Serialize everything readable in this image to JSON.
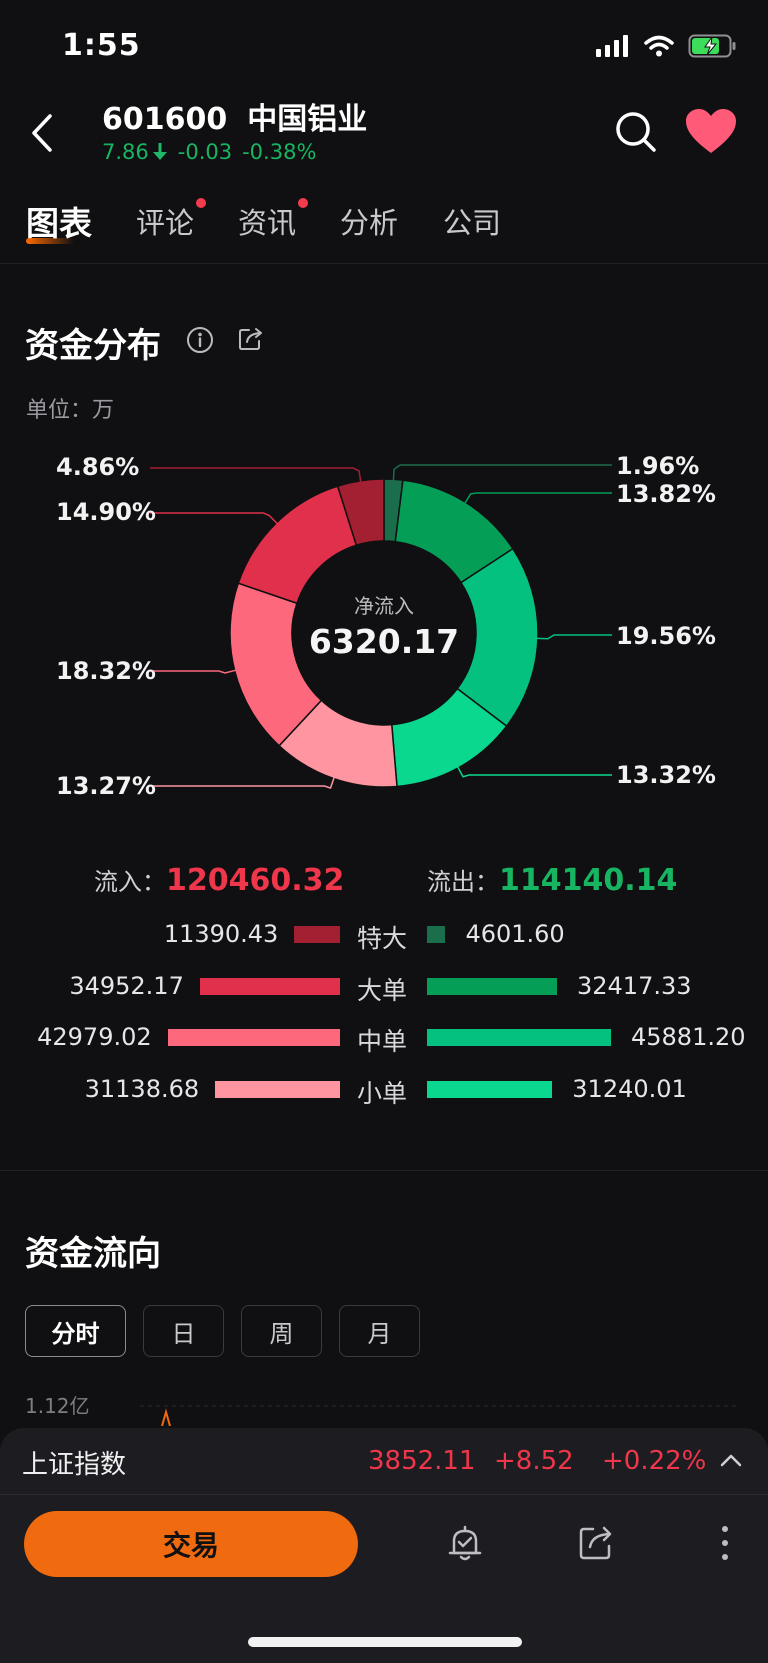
{
  "status_bar": {
    "time": "1:55"
  },
  "header": {
    "code": "601600",
    "name": "中国铝业",
    "price": "7.86",
    "change": "-0.03",
    "change_pct": "-0.38%"
  },
  "tabs": [
    {
      "label": "图表",
      "active": true,
      "badge": false
    },
    {
      "label": "评论",
      "active": false,
      "badge": true
    },
    {
      "label": "资讯",
      "active": false,
      "badge": true
    },
    {
      "label": "分析",
      "active": false,
      "badge": false
    },
    {
      "label": "公司",
      "active": false,
      "badge": false
    }
  ],
  "distribution": {
    "title": "资金分布",
    "unit": "单位：万",
    "center_label": "净流入",
    "center_value": "6320.17",
    "inflow_label": "流入：",
    "inflow_value": "120460.32",
    "outflow_label": "流出：",
    "outflow_value": "114140.14",
    "rows": [
      {
        "category": "特大",
        "in": "11390.43",
        "out": "4601.60"
      },
      {
        "category": "大单",
        "in": "34952.17",
        "out": "32417.33"
      },
      {
        "category": "中单",
        "in": "42979.02",
        "out": "45881.20"
      },
      {
        "category": "小单",
        "in": "31138.68",
        "out": "31240.01"
      }
    ]
  },
  "chart_data": {
    "type": "pie",
    "donut": true,
    "slices": [
      {
        "group": "out",
        "category": "特大",
        "value": 1.96,
        "label": "1.96%",
        "color": "#1a6e4c"
      },
      {
        "group": "out",
        "category": "大单",
        "value": 13.82,
        "label": "13.82%",
        "color": "#049e57"
      },
      {
        "group": "out",
        "category": "中单",
        "value": 19.56,
        "label": "19.56%",
        "color": "#05c180"
      },
      {
        "group": "out",
        "category": "小单",
        "value": 13.32,
        "label": "13.32%",
        "color": "#0ad88e"
      },
      {
        "group": "in",
        "category": "小单",
        "value": 13.27,
        "label": "13.27%",
        "color": "#fe95a1"
      },
      {
        "group": "in",
        "category": "中单",
        "value": 18.32,
        "label": "18.32%",
        "color": "#fd687c"
      },
      {
        "group": "in",
        "category": "大单",
        "value": 14.9,
        "label": "14.90%",
        "color": "#e0304b"
      },
      {
        "group": "in",
        "category": "特大",
        "value": 4.86,
        "label": "4.86%",
        "color": "#a31f32"
      }
    ]
  },
  "flow_direction": {
    "title": "资金流向",
    "periods": [
      "分时",
      "日",
      "周",
      "月"
    ],
    "active_period": "分时",
    "y_top_label": "1.12亿"
  },
  "index_bar": {
    "name": "上证指数",
    "value": "3852.11",
    "change": "+8.52",
    "change_pct": "+0.22%"
  },
  "bottom_bar": {
    "trade_label": "交易"
  },
  "colors": {
    "inflow": "#f0364b",
    "outflow": "#17b561",
    "accent": "#f06a0f",
    "favorite": "#ff5a78"
  }
}
